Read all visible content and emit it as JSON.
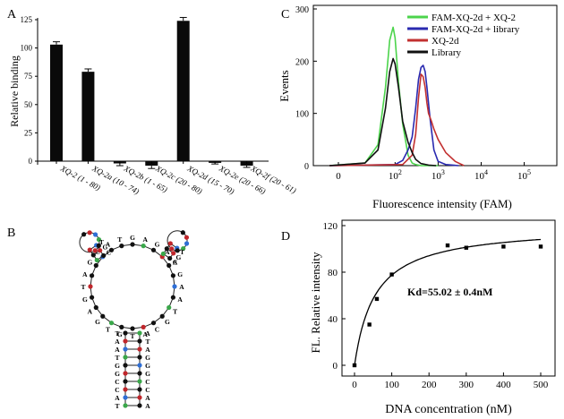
{
  "colors": {
    "bar": "#0a0a0a",
    "axis": "#000000",
    "green": "#4cd44c",
    "blue": "#2a2ab0",
    "red": "#c23030",
    "black": "#111111",
    "node_black": "#111111",
    "node_red": "#c0262b",
    "node_blue": "#2f6fd6",
    "node_green": "#3aa84a"
  },
  "panels": {
    "a": {
      "letter": "A"
    },
    "b": {
      "letter": "B"
    },
    "c": {
      "letter": "C"
    },
    "d": {
      "letter": "D"
    }
  },
  "chart_data": [
    {
      "id": "A",
      "type": "bar",
      "ylabel": "Relative binding",
      "ylim": [
        0,
        125
      ],
      "yticks": [
        0,
        25,
        50,
        75,
        100,
        125
      ],
      "categories": [
        "XQ-2 (1 - 80)",
        "XQ-2a (10 - 74)",
        "XQ-2b (1 - 65)",
        "XQ-2c (20 - 80)",
        "XQ-2d (15 - 70)",
        "XQ-2e (20 - 66)",
        "XQ-2f (20 - 61)"
      ],
      "values": [
        103,
        79,
        -2,
        -4,
        124,
        -1.5,
        -4
      ],
      "errors": [
        2.5,
        2.5,
        2,
        2.5,
        3,
        1,
        1.5
      ]
    },
    {
      "id": "C",
      "type": "line",
      "xlabel": "Fluorescence intensity (FAM)",
      "ylabel": "Events",
      "xscale": "log",
      "ylim": [
        0,
        300
      ],
      "yticks": [
        0,
        100,
        200,
        300
      ],
      "xticks": [
        {
          "value": 0,
          "label": "0"
        },
        {
          "value": 100,
          "label": "10",
          "exp": "2"
        },
        {
          "value": 1000,
          "label": "10",
          "exp": "3"
        },
        {
          "value": 10000,
          "label": "10",
          "exp": "4"
        },
        {
          "value": 100000,
          "label": "10",
          "exp": "5"
        }
      ],
      "legend_position": "top-right",
      "series": [
        {
          "name": "FAM-XQ-2d + XQ-2",
          "color": "#4cd44c",
          "x": [
            3,
            20,
            40,
            60,
            75,
            90,
            100,
            120,
            150,
            200,
            250,
            300,
            400,
            600,
            1000
          ],
          "y": [
            0,
            5,
            40,
            150,
            240,
            265,
            245,
            160,
            80,
            20,
            5,
            2,
            0,
            0,
            0
          ]
        },
        {
          "name": "FAM-XQ-2d + library",
          "color": "#2a2ab0",
          "x": [
            3,
            100,
            150,
            200,
            250,
            300,
            350,
            400,
            450,
            500,
            550,
            650,
            800,
            1000,
            1500,
            3000
          ],
          "y": [
            0,
            2,
            10,
            30,
            55,
            110,
            165,
            188,
            192,
            180,
            150,
            90,
            30,
            8,
            2,
            0
          ]
        },
        {
          "name": "XQ-2d",
          "color": "#c23030",
          "x": [
            3,
            150,
            250,
            300,
            350,
            400,
            450,
            500,
            550,
            600,
            700,
            800,
            1000,
            1500,
            2500,
            4000
          ],
          "y": [
            0,
            2,
            20,
            60,
            130,
            175,
            170,
            150,
            120,
            100,
            85,
            70,
            50,
            25,
            8,
            0
          ]
        },
        {
          "name": "Library",
          "color": "#111111",
          "x": [
            3,
            20,
            40,
            60,
            75,
            90,
            100,
            120,
            150,
            200,
            250,
            300,
            400,
            600,
            900
          ],
          "y": [
            0,
            5,
            30,
            110,
            180,
            205,
            195,
            150,
            85,
            45,
            25,
            12,
            4,
            1,
            0
          ]
        }
      ]
    },
    {
      "id": "D",
      "type": "scatter",
      "xlabel": "DNA concentration (nM)",
      "ylabel": "FL. Relative intensity",
      "xlim": [
        0,
        500
      ],
      "ylim": [
        0,
        120
      ],
      "xticks": [
        0,
        100,
        200,
        300,
        400,
        500
      ],
      "yticks": [
        0,
        40,
        80,
        120
      ],
      "annotation": "Kd=55.02 ± 0.4nM",
      "fit_bmax": 120,
      "fit_kd": 55.02,
      "x": [
        0,
        40,
        60,
        100,
        250,
        300,
        400,
        500
      ],
      "y": [
        0,
        35,
        57,
        78,
        103,
        101,
        102,
        102
      ]
    }
  ]
}
